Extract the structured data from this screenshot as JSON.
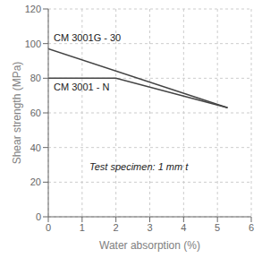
{
  "chart_data": {
    "type": "line",
    "xlabel": "Water absorption (%)",
    "ylabel": "Shear strength (MPa)",
    "annotations": [
      "Test specimen: 1 mm t"
    ],
    "series": [
      {
        "name": "CM 3001G - 30",
        "color": "#444444",
        "x": [
          0,
          5.3
        ],
        "values": [
          97,
          63
        ]
      },
      {
        "name": "CM 3001 - N",
        "color": "#444444",
        "x": [
          0,
          2.0,
          5.3
        ],
        "values": [
          80,
          80,
          63
        ]
      }
    ],
    "xlim": [
      0,
      6
    ],
    "xticks": [
      0,
      1,
      2,
      3,
      4,
      5,
      6
    ],
    "ylim": [
      0,
      120
    ],
    "yticks": [
      0,
      20,
      40,
      60,
      80,
      100,
      120
    ],
    "grid": true
  }
}
